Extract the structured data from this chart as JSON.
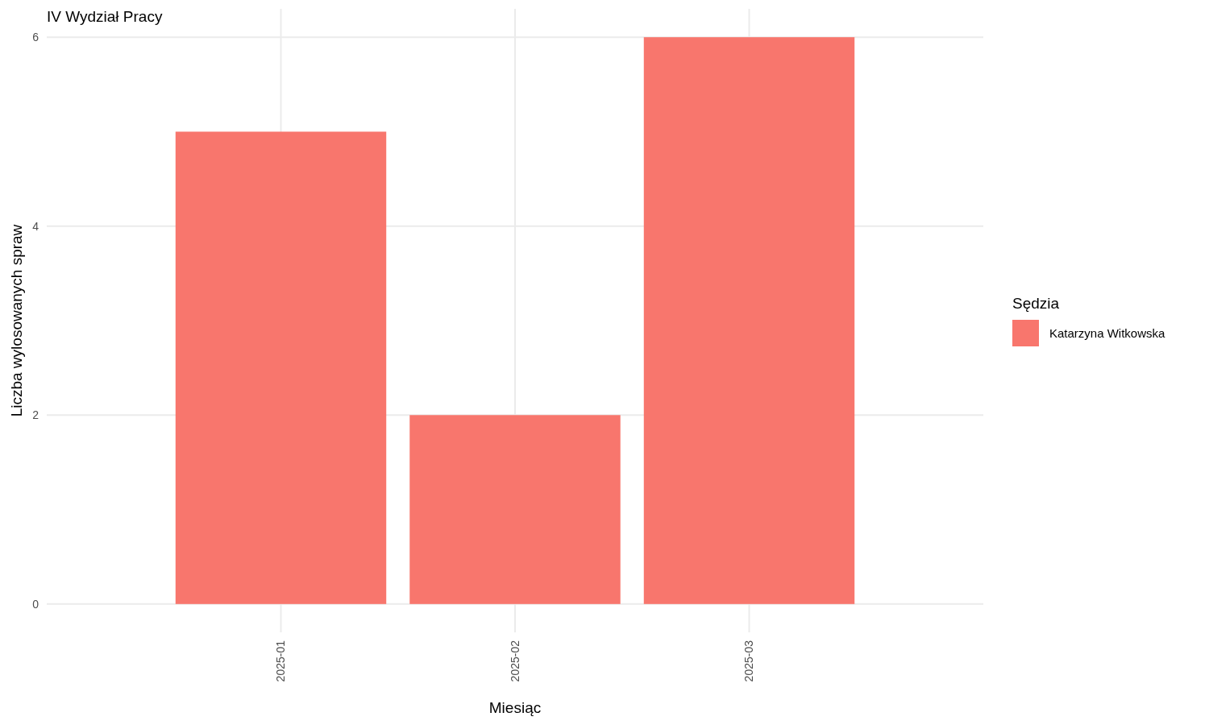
{
  "chart_data": {
    "type": "bar",
    "title": "IV Wydział Pracy",
    "xlabel": "Miesiąc",
    "ylabel": "Liczba wylosowanych spraw",
    "legend_title": "Sędzia",
    "categories": [
      "2025-01",
      "2025-02",
      "2025-03"
    ],
    "series": [
      {
        "name": "Katarzyna Witkowska",
        "color": "#f8766d",
        "values": [
          5,
          2,
          6
        ]
      }
    ],
    "ylim": [
      -0.3,
      6.3
    ],
    "yticks": [
      0,
      2,
      4,
      6
    ],
    "grid": true,
    "legend": "right"
  }
}
